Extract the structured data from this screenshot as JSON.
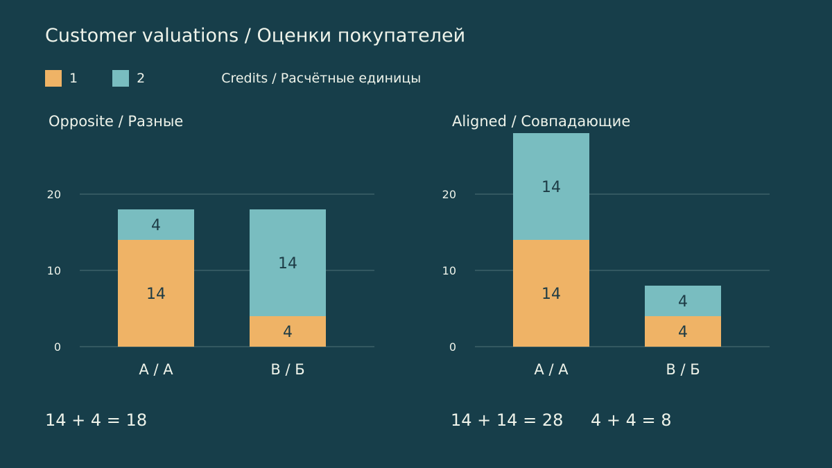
{
  "title": "Customer valuations / Оценки покупателей",
  "legend": {
    "items": [
      {
        "label": "1",
        "color": "#efb366"
      },
      {
        "label": "2",
        "color": "#79bdc0"
      }
    ],
    "unit": "Credits / Расчётные единицы"
  },
  "colors": {
    "background": "#173e4a",
    "grid": "#4f7178",
    "text": "#eef3ea",
    "bar_label": "#1d3b45"
  },
  "chart_data": [
    {
      "type": "bar",
      "stacked": true,
      "title": "Opposite / Разные",
      "categories": [
        "A / A",
        "B / Б"
      ],
      "series": [
        {
          "name": "1",
          "values": [
            14,
            4
          ]
        },
        {
          "name": "2",
          "values": [
            4,
            14
          ]
        }
      ],
      "ylim": [
        0,
        28
      ],
      "yticks": [
        0,
        10,
        20
      ],
      "grid": true,
      "legend": "top-left",
      "equations": [
        "14 + 4 = 18"
      ]
    },
    {
      "type": "bar",
      "stacked": true,
      "title": "Aligned / Совпадающие",
      "categories": [
        "A / A",
        "B / Б"
      ],
      "series": [
        {
          "name": "1",
          "values": [
            14,
            4
          ]
        },
        {
          "name": "2",
          "values": [
            14,
            4
          ]
        }
      ],
      "ylim": [
        0,
        28
      ],
      "yticks": [
        0,
        10,
        20
      ],
      "grid": true,
      "legend": "top-left",
      "equations": [
        "14 + 14 = 28",
        "4 + 4 = 8"
      ]
    }
  ]
}
